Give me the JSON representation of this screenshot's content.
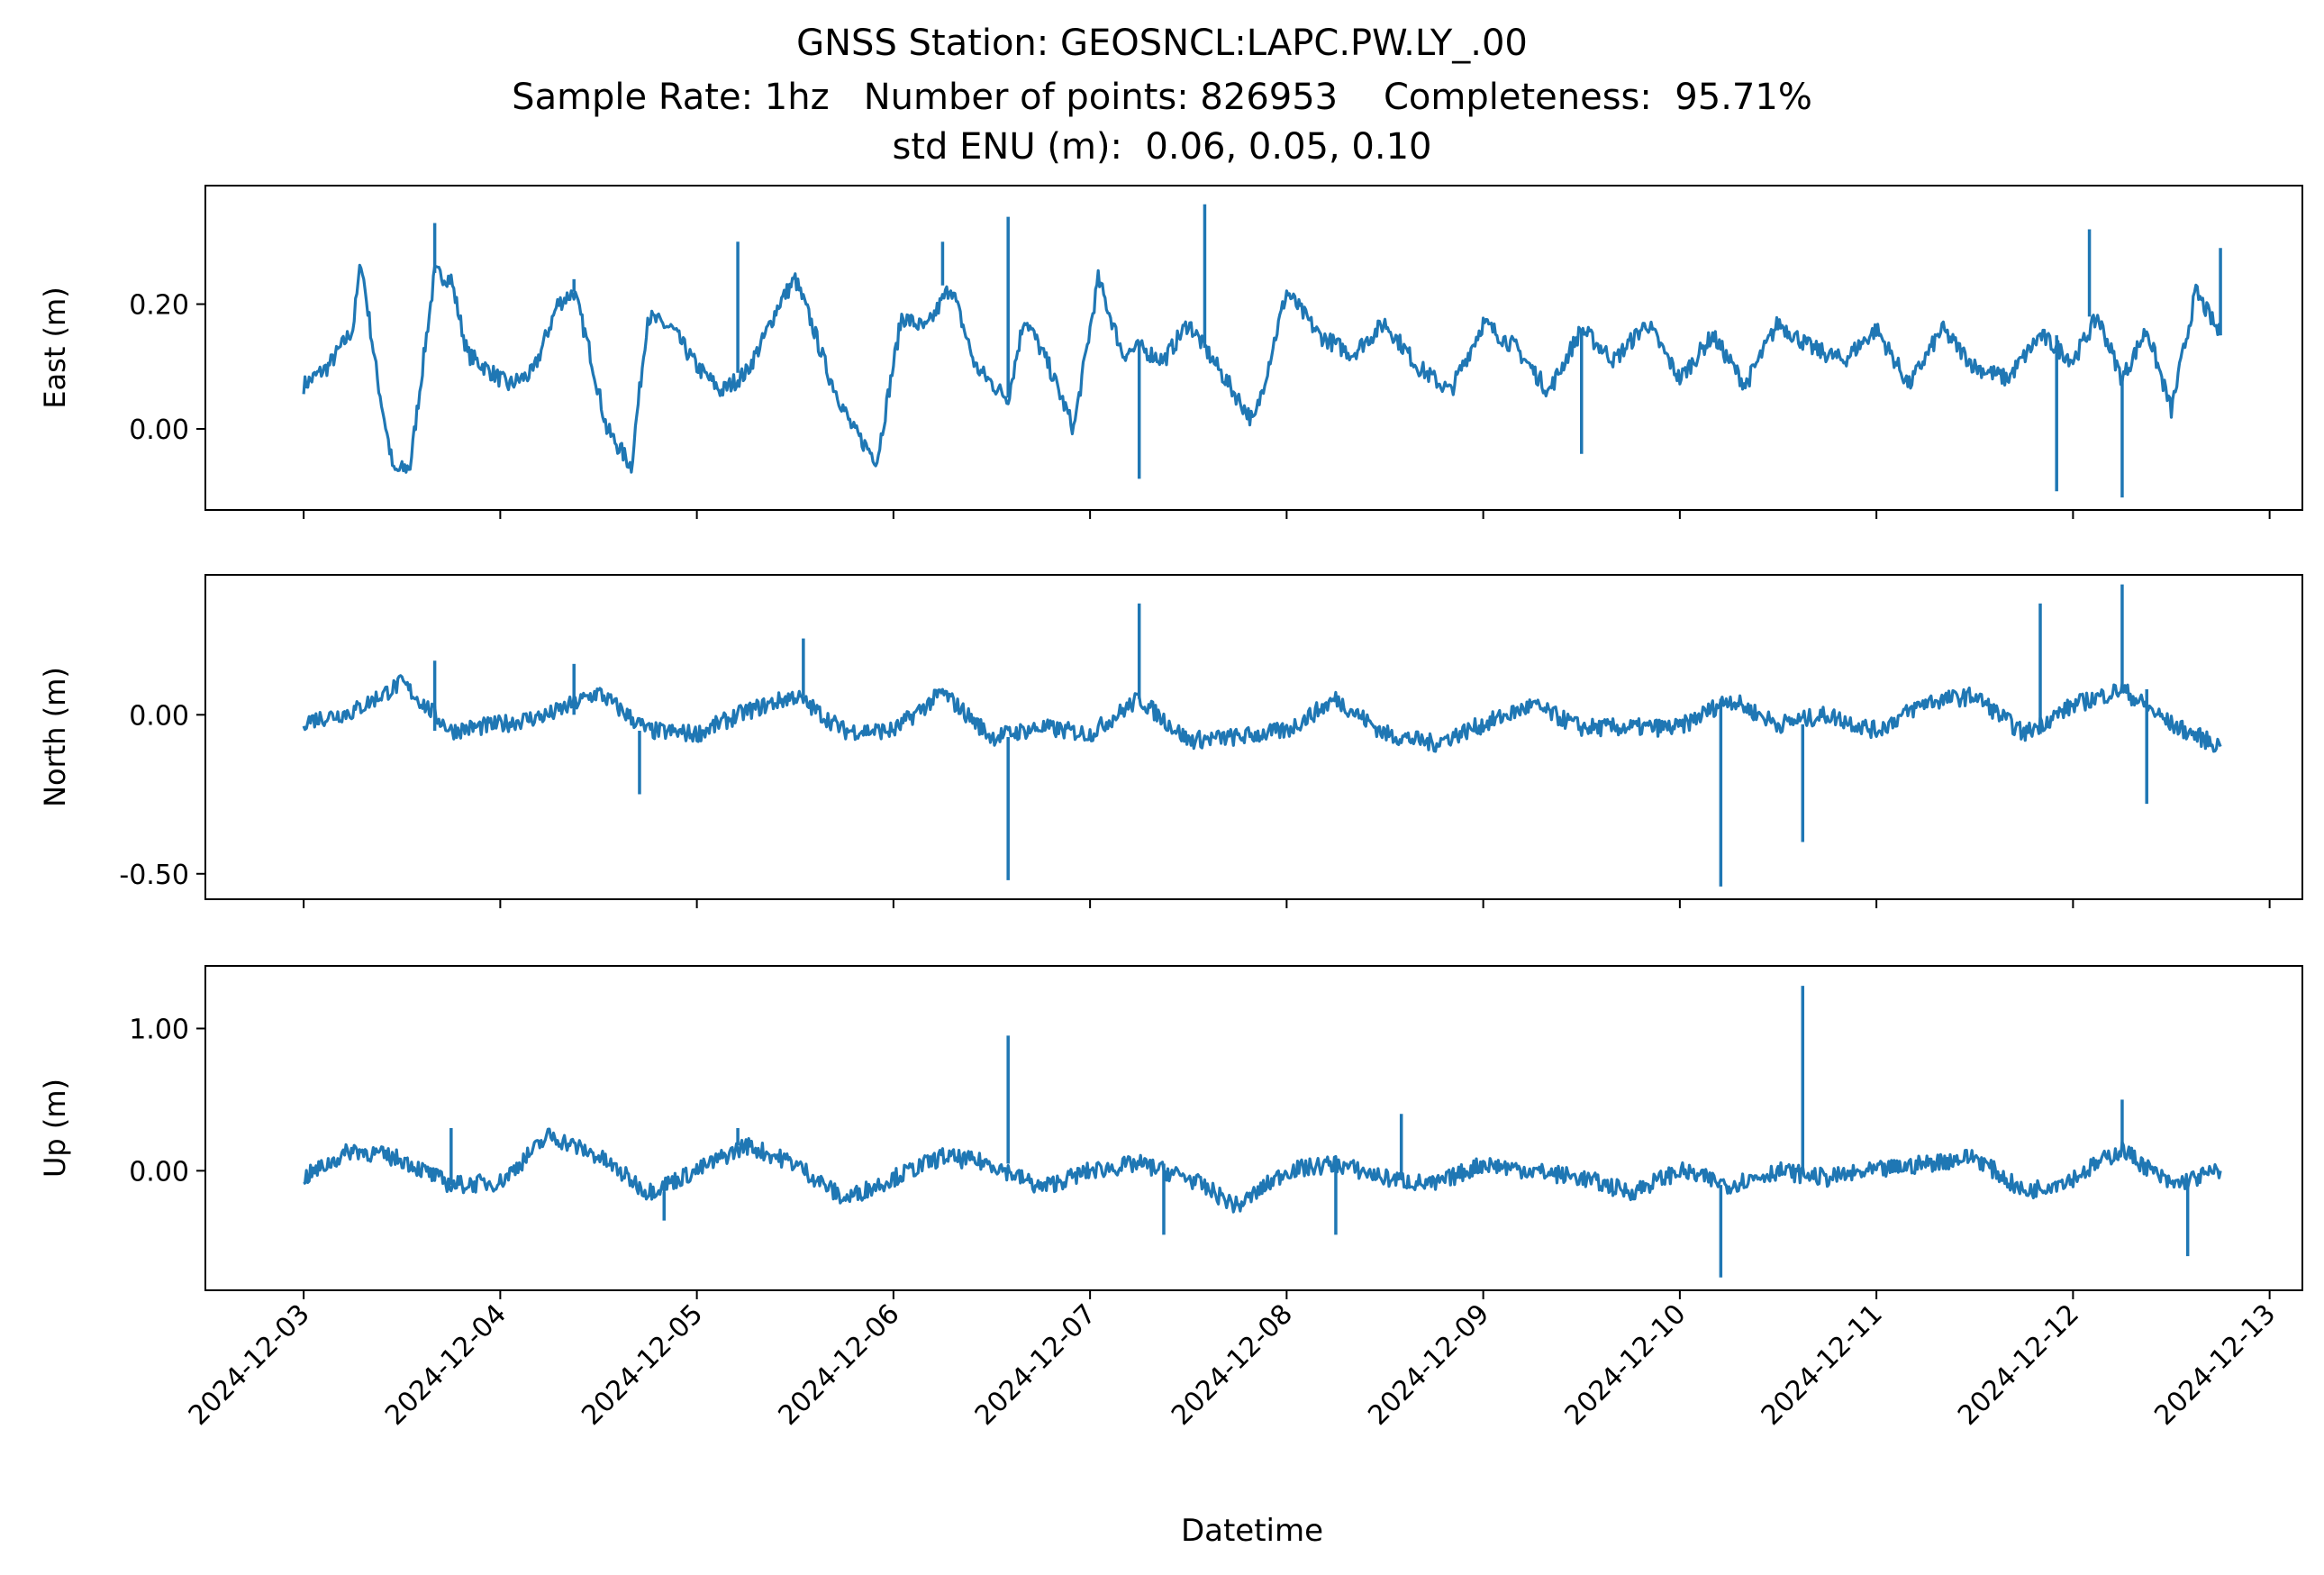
{
  "chart_data": {
    "type": "line",
    "title_lines": [
      "GNSS Station: GEOSNCL:LAPC.PW.LY_.00",
      "Sample Rate: 1hz   Number of points: 826953    Completeness:  95.71%",
      "std ENU (m):  0.06, 0.05, 0.10"
    ],
    "xlabel": "Datetime",
    "x_ticks": [
      "2024-12-03",
      "2024-12-04",
      "2024-12-05",
      "2024-12-06",
      "2024-12-07",
      "2024-12-08",
      "2024-12-09",
      "2024-12-10",
      "2024-12-11",
      "2024-12-12",
      "2024-12-13"
    ],
    "x_range": [
      "2024-12-02T12:00",
      "2024-12-13T04:00"
    ],
    "line_color": "#1f77b4",
    "panels": [
      {
        "ylabel": "East (m)",
        "ylim": [
          -0.13,
          0.39
        ],
        "yticks": [
          0.0,
          0.2
        ],
        "ytick_labels": [
          "0.00",
          "0.20"
        ],
        "x": [
          "2024-12-03T00:00",
          "2024-12-03T03:00",
          "2024-12-03T06:00",
          "2024-12-03T07:00",
          "2024-12-03T09:00",
          "2024-12-03T11:00",
          "2024-12-03T13:00",
          "2024-12-03T15:00",
          "2024-12-03T16:00",
          "2024-12-03T18:00",
          "2024-12-03T20:00",
          "2024-12-03T22:00",
          "2024-12-04T01:00",
          "2024-12-04T04:00",
          "2024-12-04T07:00",
          "2024-12-04T09:00",
          "2024-12-04T11:00",
          "2024-12-04T13:00",
          "2024-12-04T16:00",
          "2024-12-04T18:00",
          "2024-12-04T21:00",
          "2024-12-05T00:00",
          "2024-12-05T03:00",
          "2024-12-05T06:00",
          "2024-12-05T08:00",
          "2024-12-05T10:00",
          "2024-12-05T12:00",
          "2024-12-05T14:00",
          "2024-12-05T16:00",
          "2024-12-05T19:00",
          "2024-12-05T22:00",
          "2024-12-06T01:00",
          "2024-12-06T04:00",
          "2024-12-06T07:00",
          "2024-12-06T10:00",
          "2024-12-06T13:00",
          "2024-12-06T14:00",
          "2024-12-06T16:00",
          "2024-12-06T19:00",
          "2024-12-06T22:00",
          "2024-12-07T01:00",
          "2024-12-07T04:00",
          "2024-12-07T06:00",
          "2024-12-07T09:00",
          "2024-12-07T12:00",
          "2024-12-07T14:00",
          "2024-12-07T17:00",
          "2024-12-07T20:00",
          "2024-12-08T00:00",
          "2024-12-08T04:00",
          "2024-12-08T08:00",
          "2024-12-08T12:00",
          "2024-12-08T16:00",
          "2024-12-08T20:00",
          "2024-12-09T00:00",
          "2024-12-09T04:00",
          "2024-12-09T08:00",
          "2024-12-09T12:00",
          "2024-12-09T16:00",
          "2024-12-09T20:00",
          "2024-12-10T00:00",
          "2024-12-10T04:00",
          "2024-12-10T08:00",
          "2024-12-10T12:00",
          "2024-12-10T16:00",
          "2024-12-10T20:00",
          "2024-12-11T00:00",
          "2024-12-11T04:00",
          "2024-12-11T08:00",
          "2024-12-11T12:00",
          "2024-12-11T16:00",
          "2024-12-11T20:00",
          "2024-12-12T00:00",
          "2024-12-12T03:00",
          "2024-12-12T06:00",
          "2024-12-12T09:00",
          "2024-12-12T12:00",
          "2024-12-12T15:00",
          "2024-12-12T18:00"
        ],
        "y": [
          0.07,
          0.1,
          0.16,
          0.27,
          0.08,
          -0.07,
          -0.06,
          0.15,
          0.25,
          0.24,
          0.12,
          0.1,
          0.07,
          0.09,
          0.2,
          0.22,
          0.12,
          0.0,
          -0.06,
          0.18,
          0.16,
          0.1,
          0.06,
          0.09,
          0.14,
          0.2,
          0.24,
          0.17,
          0.09,
          0.0,
          -0.05,
          0.18,
          0.16,
          0.23,
          0.1,
          0.06,
          0.05,
          0.18,
          0.1,
          0.0,
          0.24,
          0.12,
          0.13,
          0.11,
          0.17,
          0.13,
          0.07,
          0.01,
          0.22,
          0.15,
          0.12,
          0.17,
          0.1,
          0.06,
          0.17,
          0.13,
          0.06,
          0.16,
          0.11,
          0.17,
          0.08,
          0.15,
          0.07,
          0.17,
          0.13,
          0.11,
          0.16,
          0.07,
          0.16,
          0.1,
          0.08,
          0.15,
          0.11,
          0.18,
          0.08,
          0.16,
          0.03,
          0.22,
          0.15
        ],
        "spikes": [
          {
            "x": "2024-12-03T16:00",
            "y": 0.33
          },
          {
            "x": "2024-12-04T09:00",
            "y": 0.24
          },
          {
            "x": "2024-12-05T05:00",
            "y": 0.3
          },
          {
            "x": "2024-12-06T06:00",
            "y": 0.3
          },
          {
            "x": "2024-12-06T14:00",
            "y": 0.34
          },
          {
            "x": "2024-12-07T06:00",
            "y": -0.08
          },
          {
            "x": "2024-12-07T14:00",
            "y": 0.36
          },
          {
            "x": "2024-12-09T12:00",
            "y": -0.04
          },
          {
            "x": "2024-12-11T22:00",
            "y": -0.1
          },
          {
            "x": "2024-12-12T02:00",
            "y": 0.32
          },
          {
            "x": "2024-12-12T06:00",
            "y": -0.11
          },
          {
            "x": "2024-12-12T18:00",
            "y": 0.29
          }
        ]
      },
      {
        "ylabel": "North (m)",
        "ylim": [
          -0.58,
          0.44
        ],
        "yticks": [
          0.0,
          -0.5
        ],
        "ytick_labels": [
          "0.00",
          "-0.50"
        ],
        "x": [
          "2024-12-03T00:00",
          "2024-12-03T06:00",
          "2024-12-03T12:00",
          "2024-12-03T18:00",
          "2024-12-04T00:00",
          "2024-12-04T06:00",
          "2024-12-04T12:00",
          "2024-12-04T18:00",
          "2024-12-05T00:00",
          "2024-12-05T06:00",
          "2024-12-05T12:00",
          "2024-12-05T18:00",
          "2024-12-06T00:00",
          "2024-12-06T06:00",
          "2024-12-06T12:00",
          "2024-12-06T18:00",
          "2024-12-07T00:00",
          "2024-12-07T06:00",
          "2024-12-07T12:00",
          "2024-12-07T18:00",
          "2024-12-08T00:00",
          "2024-12-08T06:00",
          "2024-12-08T12:00",
          "2024-12-08T18:00",
          "2024-12-09T00:00",
          "2024-12-09T06:00",
          "2024-12-09T12:00",
          "2024-12-09T18:00",
          "2024-12-10T00:00",
          "2024-12-10T06:00",
          "2024-12-10T12:00",
          "2024-12-10T18:00",
          "2024-12-11T00:00",
          "2024-12-11T06:00",
          "2024-12-11T12:00",
          "2024-12-11T18:00",
          "2024-12-12T00:00",
          "2024-12-12T06:00",
          "2024-12-12T12:00",
          "2024-12-12T18:00"
        ],
        "y": [
          -0.02,
          0.01,
          0.1,
          -0.05,
          -0.03,
          0.0,
          0.07,
          -0.05,
          -0.06,
          0.01,
          0.06,
          -0.05,
          -0.05,
          0.07,
          -0.07,
          -0.04,
          -0.06,
          0.05,
          -0.08,
          -0.07,
          -0.05,
          0.05,
          -0.06,
          -0.09,
          -0.03,
          0.03,
          -0.04,
          -0.04,
          -0.04,
          0.05,
          -0.03,
          0.0,
          -0.05,
          0.04,
          0.06,
          -0.06,
          0.03,
          0.08,
          -0.03,
          -0.1
        ],
        "spikes": [
          {
            "x": "2024-12-03T16:00",
            "y": 0.17
          },
          {
            "x": "2024-12-04T09:00",
            "y": 0.16
          },
          {
            "x": "2024-12-04T17:00",
            "y": -0.25
          },
          {
            "x": "2024-12-05T13:00",
            "y": 0.24
          },
          {
            "x": "2024-12-06T14:00",
            "y": -0.52
          },
          {
            "x": "2024-12-07T06:00",
            "y": 0.35
          },
          {
            "x": "2024-12-10T05:00",
            "y": -0.54
          },
          {
            "x": "2024-12-10T15:00",
            "y": -0.4
          },
          {
            "x": "2024-12-11T20:00",
            "y": 0.35
          },
          {
            "x": "2024-12-12T06:00",
            "y": 0.41
          },
          {
            "x": "2024-12-12T09:00",
            "y": -0.28
          }
        ]
      },
      {
        "ylabel": "Up (m)",
        "ylim": [
          -0.84,
          1.44
        ],
        "yticks": [
          0.0,
          1.0
        ],
        "ytick_labels": [
          "0.00",
          "1.00"
        ],
        "x": [
          "2024-12-03T00:00",
          "2024-12-03T06:00",
          "2024-12-03T12:00",
          "2024-12-03T18:00",
          "2024-12-04T00:00",
          "2024-12-04T06:00",
          "2024-12-04T12:00",
          "2024-12-04T18:00",
          "2024-12-05T00:00",
          "2024-12-05T06:00",
          "2024-12-05T12:00",
          "2024-12-05T18:00",
          "2024-12-06T00:00",
          "2024-12-06T06:00",
          "2024-12-06T12:00",
          "2024-12-06T18:00",
          "2024-12-07T00:00",
          "2024-12-07T06:00",
          "2024-12-07T12:00",
          "2024-12-07T18:00",
          "2024-12-08T00:00",
          "2024-12-08T06:00",
          "2024-12-08T12:00",
          "2024-12-08T18:00",
          "2024-12-09T00:00",
          "2024-12-09T06:00",
          "2024-12-09T12:00",
          "2024-12-09T18:00",
          "2024-12-10T00:00",
          "2024-12-10T06:00",
          "2024-12-10T12:00",
          "2024-12-10T18:00",
          "2024-12-11T00:00",
          "2024-12-11T06:00",
          "2024-12-11T12:00",
          "2024-12-11T18:00",
          "2024-12-12T00:00",
          "2024-12-12T06:00",
          "2024-12-12T12:00",
          "2024-12-12T18:00"
        ],
        "y": [
          -0.05,
          0.15,
          0.08,
          -0.1,
          -0.08,
          0.25,
          0.1,
          -0.15,
          0.0,
          0.18,
          0.05,
          -0.2,
          -0.05,
          0.1,
          0.05,
          -0.12,
          0.0,
          0.05,
          -0.05,
          -0.25,
          0.0,
          0.05,
          -0.05,
          -0.1,
          0.05,
          0.0,
          -0.05,
          -0.15,
          0.0,
          -0.1,
          0.0,
          -0.05,
          0.0,
          0.05,
          0.1,
          -0.15,
          -0.05,
          0.15,
          -0.1,
          0.0
        ],
        "spikes": [
          {
            "x": "2024-12-03T18:00",
            "y": 0.3
          },
          {
            "x": "2024-12-04T20:00",
            "y": -0.35
          },
          {
            "x": "2024-12-05T05:00",
            "y": 0.3
          },
          {
            "x": "2024-12-06T14:00",
            "y": 0.95
          },
          {
            "x": "2024-12-07T09:00",
            "y": -0.45
          },
          {
            "x": "2024-12-08T06:00",
            "y": -0.45
          },
          {
            "x": "2024-12-08T14:00",
            "y": 0.4
          },
          {
            "x": "2024-12-10T05:00",
            "y": -0.75
          },
          {
            "x": "2024-12-10T15:00",
            "y": 1.3
          },
          {
            "x": "2024-12-12T06:00",
            "y": 0.5
          },
          {
            "x": "2024-12-12T14:00",
            "y": -0.6
          }
        ]
      }
    ]
  }
}
